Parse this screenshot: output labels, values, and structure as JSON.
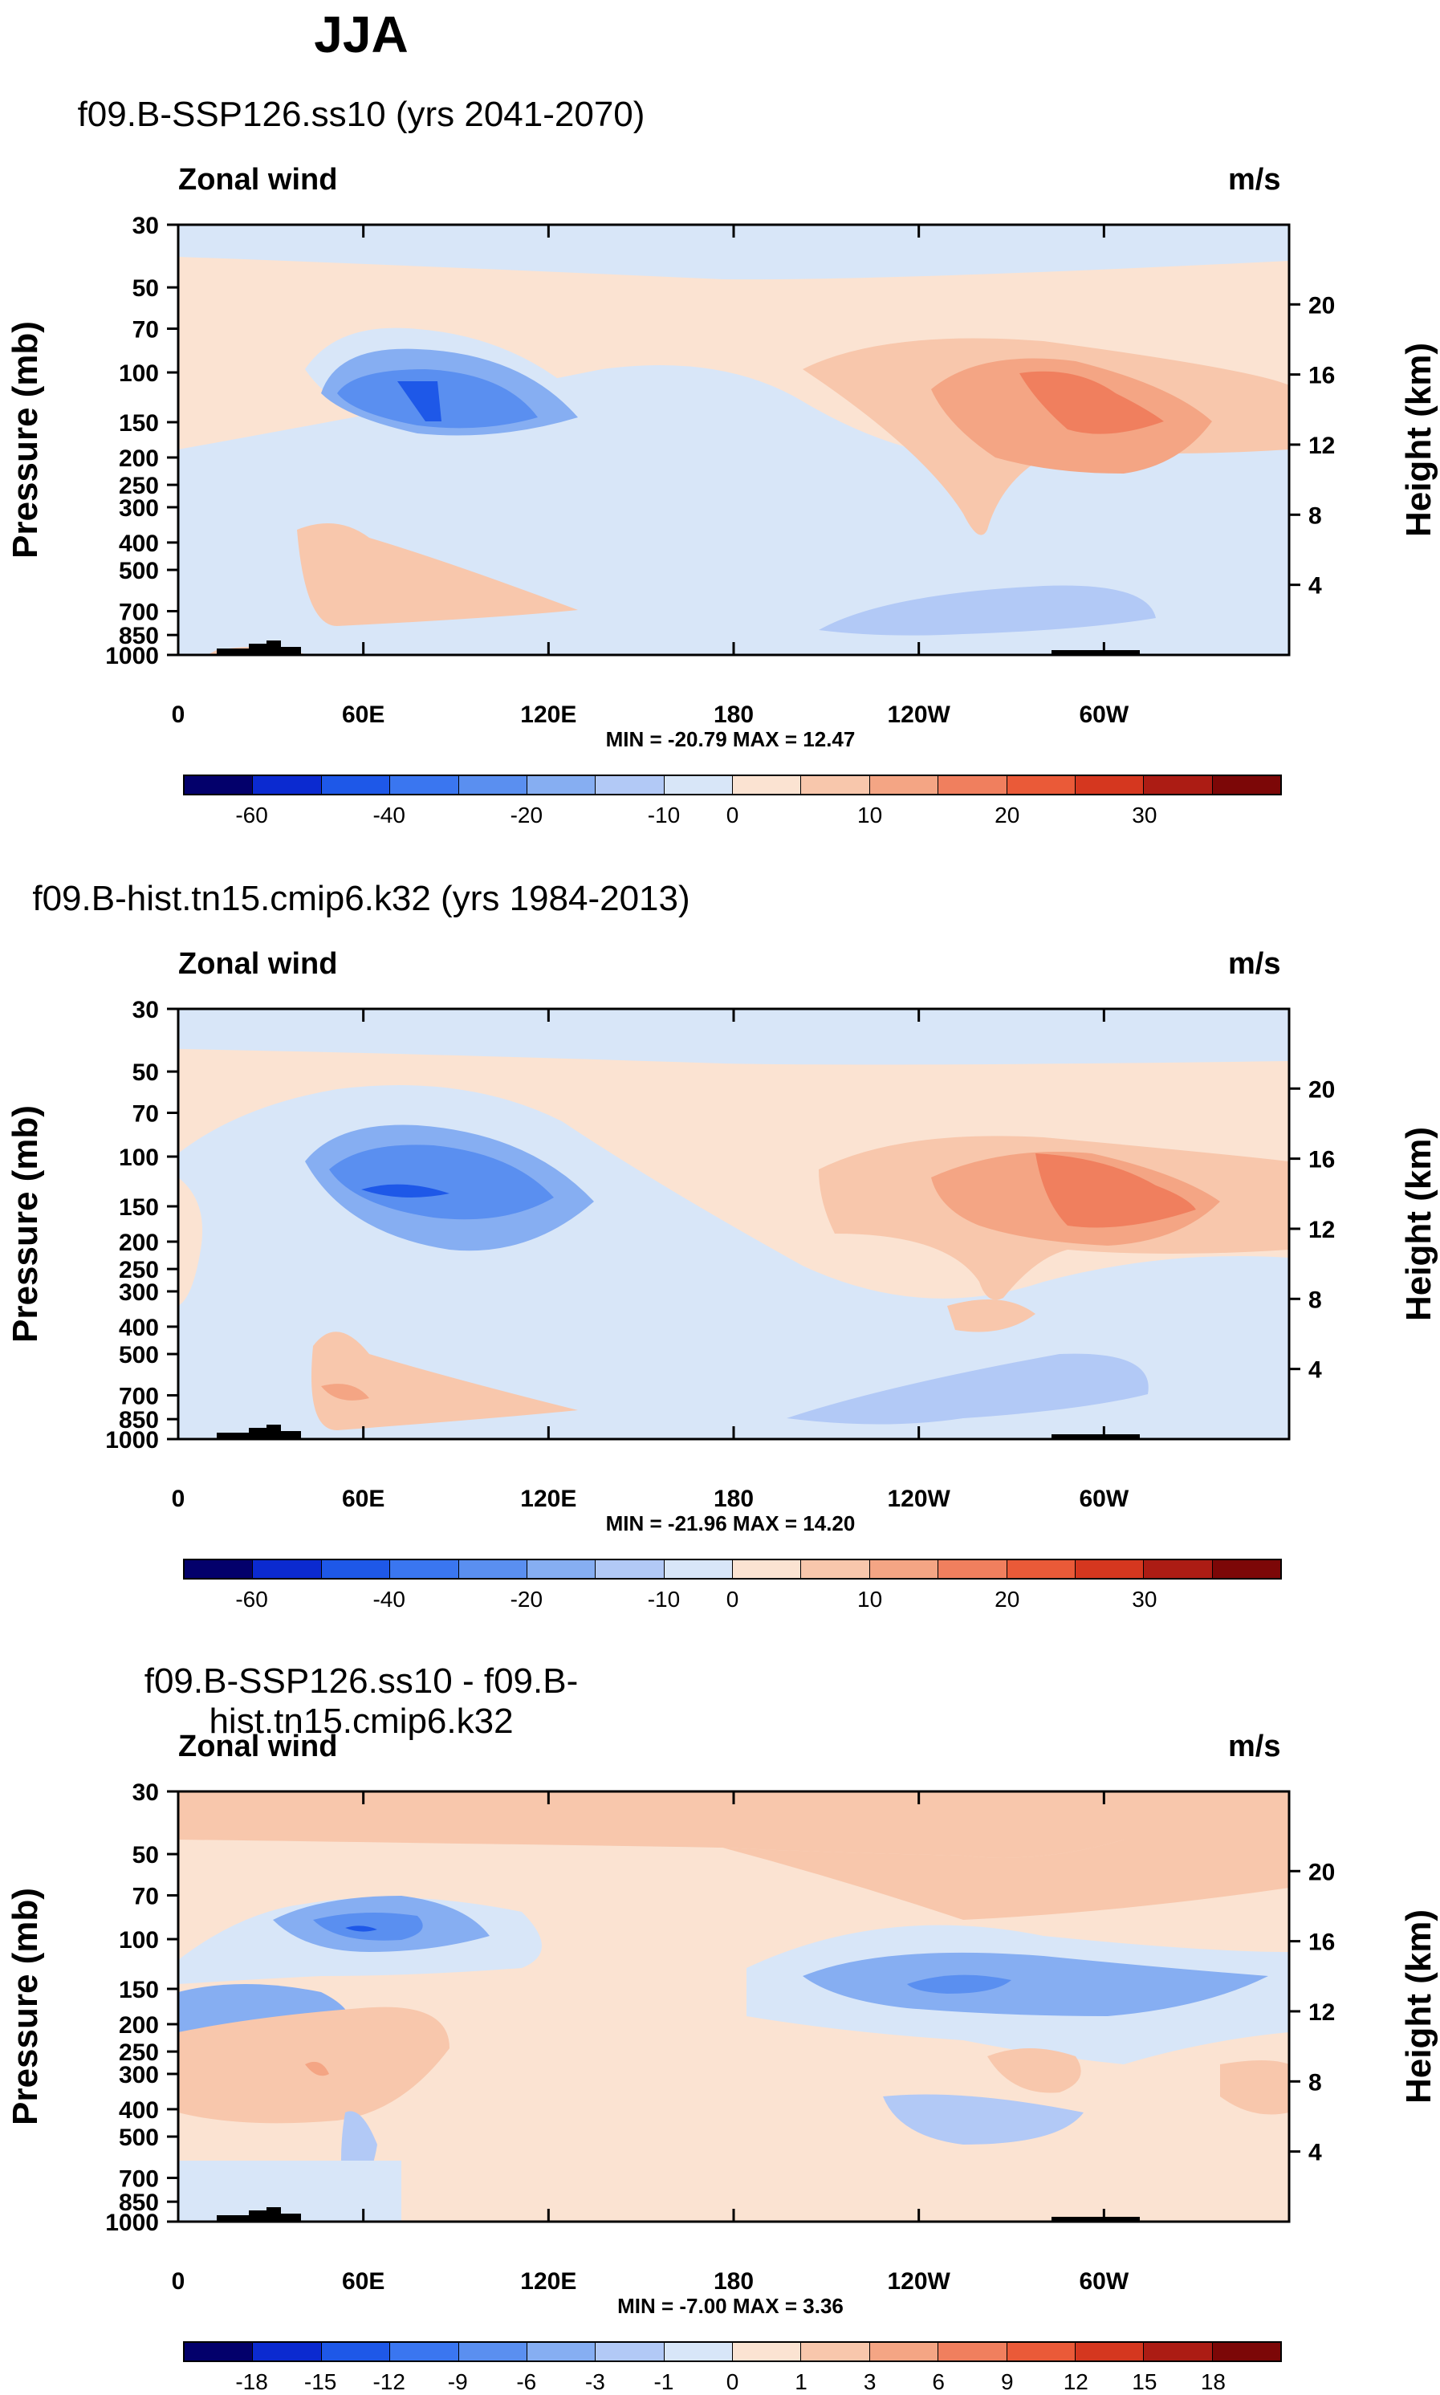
{
  "title": "JJA",
  "panels": [
    {
      "title": "f09.B-SSP126.ss10 (yrs 2041-2070)",
      "left_label": "Zonal wind",
      "right_label": "m/s",
      "minmax": "MIN = -20.79  MAX =  12.47",
      "colorbar_labels": [
        "-60",
        "-40",
        "-20",
        "-10",
        "0",
        "10",
        "20",
        "30"
      ]
    },
    {
      "title": "f09.B-hist.tn15.cmip6.k32 (yrs 1984-2013)",
      "left_label": "Zonal wind",
      "right_label": "m/s",
      "minmax": "MIN = -21.96  MAX =  14.20",
      "colorbar_labels": [
        "-60",
        "-40",
        "-20",
        "-10",
        "0",
        "10",
        "20",
        "30"
      ]
    },
    {
      "title": "f09.B-SSP126.ss10 - f09.B-hist.tn15.cmip6.k32",
      "left_label": "Zonal wind",
      "right_label": "m/s",
      "minmax": "MIN = -7.00  MAX =  3.36",
      "colorbar_labels": [
        "-18",
        "-15",
        "-12",
        "-9",
        "-6",
        "-3",
        "-1",
        "0",
        "1",
        "3",
        "6",
        "9",
        "12",
        "15",
        "18"
      ]
    }
  ],
  "chart_data": {
    "type": "heatmap",
    "title": "JJA",
    "variable": "Zonal wind",
    "units": "m/s",
    "xlabel": "",
    "ylabel": "Pressure (mb)",
    "ylabel_right": "Height (km)",
    "x_ticks": [
      "0",
      "60E",
      "120E",
      "180",
      "120W",
      "60W"
    ],
    "y_ticks": [
      "30",
      "50",
      "70",
      "100",
      "150",
      "200",
      "250",
      "300",
      "400",
      "500",
      "700",
      "850",
      "1000"
    ],
    "y2_ticks": [
      "20",
      "16",
      "12",
      "8",
      "4"
    ],
    "colors": [
      "#03006b",
      "#0b2ad0",
      "#1e58e8",
      "#3a76f0",
      "#5a8ff0",
      "#86aef2",
      "#b2c9f6",
      "#d8e6f8",
      "#fbe3d2",
      "#f8c7ac",
      "#f4a584",
      "#f07f5e",
      "#ea5a38",
      "#d5371f",
      "#ac1c14",
      "#7c0707"
    ],
    "panels": [
      {
        "title": "f09.B-SSP126.ss10 (yrs 2041-2070)",
        "min": -20.79,
        "max": 12.47,
        "levels": [
          -70,
          -60,
          -50,
          -40,
          -30,
          -20,
          -15,
          -10,
          -5,
          0,
          5,
          10,
          15,
          20,
          25,
          30
        ]
      },
      {
        "title": "f09.B-hist.tn15.cmip6.k32 (yrs 1984-2013)",
        "min": -21.96,
        "max": 14.2,
        "levels": [
          -70,
          -60,
          -50,
          -40,
          -30,
          -20,
          -15,
          -10,
          -5,
          0,
          5,
          10,
          15,
          20,
          25,
          30
        ]
      },
      {
        "title": "f09.B-SSP126.ss10 - f09.B-hist.tn15.cmip6.k32",
        "min": -7.0,
        "max": 3.36,
        "levels": [
          -18,
          -15,
          -12,
          -9,
          -6,
          -3,
          -1,
          0,
          1,
          3,
          6,
          9,
          12,
          15,
          18
        ]
      }
    ]
  }
}
